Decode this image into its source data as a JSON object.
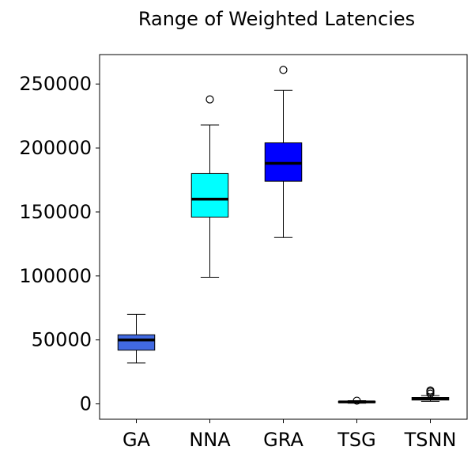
{
  "chart_data": {
    "type": "boxplot",
    "title": "Range of Weighted Latencies",
    "xlabel": "",
    "ylabel": "",
    "ylim": [
      -12000,
      273000
    ],
    "yticks": [
      0,
      50000,
      100000,
      150000,
      200000,
      250000
    ],
    "ytick_labels": [
      "0",
      "50000",
      "100000",
      "150000",
      "200000",
      "250000"
    ],
    "categories": [
      "GA",
      "NNA",
      "GRA",
      "TSG",
      "TSNN"
    ],
    "boxes": [
      {
        "name": "GA",
        "color": "#4169e1",
        "whisker_low": 32000,
        "q1": 42000,
        "median": 50000,
        "q3": 54000,
        "whisker_high": 70000,
        "outliers": []
      },
      {
        "name": "NNA",
        "color": "#00ffff",
        "whisker_low": 99000,
        "q1": 146000,
        "median": 160000,
        "q3": 180000,
        "whisker_high": 218000,
        "outliers": [
          238000
        ]
      },
      {
        "name": "GRA",
        "color": "#0000ff",
        "whisker_low": 130000,
        "q1": 174000,
        "median": 188000,
        "q3": 204000,
        "whisker_high": 245000,
        "outliers": [
          261000
        ]
      },
      {
        "name": "TSG",
        "color": "#4169e1",
        "whisker_low": 500,
        "q1": 1000,
        "median": 1500,
        "q3": 2000,
        "whisker_high": 2500,
        "outliers": [
          2500
        ]
      },
      {
        "name": "TSNN",
        "color": "#4169e1",
        "whisker_low": 2000,
        "q1": 3000,
        "median": 4000,
        "q3": 5000,
        "whisker_high": 6500,
        "outliers": [
          8000,
          9500,
          10500
        ]
      }
    ],
    "median_color": "#000000",
    "grid": false,
    "legend": "none"
  }
}
